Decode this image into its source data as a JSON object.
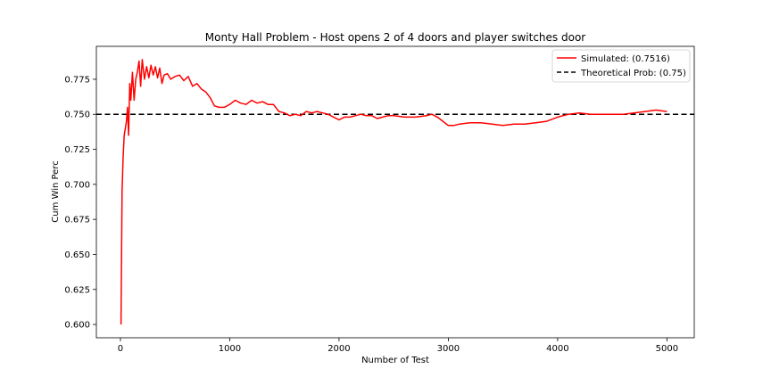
{
  "chart_data": {
    "type": "line",
    "title": "Monty Hall Problem - Host opens 2 of 4 doors and player switches door",
    "xlabel": "Number of Test",
    "ylabel": "Cum Win Perc",
    "xlim": [
      -220,
      5250
    ],
    "ylim": [
      0.5905,
      0.7985
    ],
    "xticks": [
      0,
      1000,
      2000,
      3000,
      4000,
      5000
    ],
    "xtick_labels": [
      "0",
      "1000",
      "2000",
      "3000",
      "4000",
      "5000"
    ],
    "yticks": [
      0.6,
      0.625,
      0.65,
      0.675,
      0.7,
      0.725,
      0.75,
      0.775
    ],
    "ytick_labels": [
      "0.600",
      "0.625",
      "0.650",
      "0.675",
      "0.700",
      "0.725",
      "0.750",
      "0.775"
    ],
    "grid": false,
    "legend_position": "top-right",
    "colors": {
      "simulated": "#ff0000",
      "theoretical": "#000000"
    },
    "series": [
      {
        "name": "Simulated: (0.7516)",
        "style": "solid",
        "color": "#ff0000",
        "x": [
          5,
          15,
          25,
          35,
          45,
          55,
          65,
          75,
          85,
          95,
          110,
          125,
          140,
          155,
          170,
          185,
          200,
          220,
          240,
          260,
          280,
          300,
          320,
          340,
          360,
          380,
          400,
          430,
          460,
          500,
          540,
          580,
          620,
          660,
          700,
          740,
          780,
          820,
          860,
          900,
          950,
          1000,
          1050,
          1100,
          1150,
          1200,
          1250,
          1300,
          1350,
          1400,
          1450,
          1500,
          1550,
          1600,
          1650,
          1700,
          1750,
          1800,
          1850,
          1900,
          1950,
          2000,
          2050,
          2100,
          2150,
          2200,
          2250,
          2300,
          2350,
          2400,
          2450,
          2500,
          2600,
          2700,
          2800,
          2850,
          2900,
          2950,
          3000,
          3050,
          3100,
          3200,
          3300,
          3400,
          3500,
          3600,
          3700,
          3800,
          3900,
          4000,
          4100,
          4200,
          4300,
          4400,
          4500,
          4600,
          4700,
          4800,
          4900,
          5000
        ],
        "y": [
          0.6,
          0.695,
          0.72,
          0.735,
          0.74,
          0.745,
          0.755,
          0.735,
          0.772,
          0.76,
          0.78,
          0.76,
          0.775,
          0.78,
          0.788,
          0.77,
          0.789,
          0.775,
          0.784,
          0.776,
          0.785,
          0.778,
          0.784,
          0.776,
          0.783,
          0.772,
          0.778,
          0.779,
          0.775,
          0.777,
          0.778,
          0.774,
          0.777,
          0.77,
          0.772,
          0.768,
          0.766,
          0.762,
          0.756,
          0.755,
          0.755,
          0.757,
          0.76,
          0.758,
          0.757,
          0.76,
          0.758,
          0.759,
          0.757,
          0.757,
          0.752,
          0.751,
          0.749,
          0.75,
          0.749,
          0.752,
          0.751,
          0.752,
          0.751,
          0.75,
          0.748,
          0.746,
          0.748,
          0.748,
          0.749,
          0.75,
          0.749,
          0.749,
          0.747,
          0.748,
          0.749,
          0.749,
          0.748,
          0.748,
          0.749,
          0.75,
          0.748,
          0.745,
          0.742,
          0.742,
          0.743,
          0.744,
          0.744,
          0.743,
          0.742,
          0.743,
          0.743,
          0.744,
          0.745,
          0.748,
          0.75,
          0.751,
          0.75,
          0.75,
          0.75,
          0.75,
          0.751,
          0.752,
          0.753,
          0.752
        ]
      },
      {
        "name": "Theoretical Prob: (0.75)",
        "style": "dashed",
        "color": "#000000",
        "y_constant": 0.75
      }
    ]
  }
}
